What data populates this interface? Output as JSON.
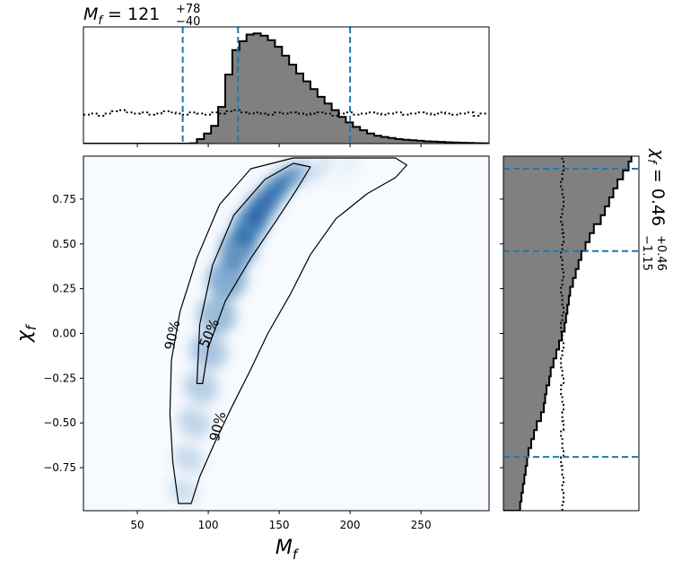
{
  "colors": {
    "accent": "#1f77b4",
    "hist_fill": "#808080",
    "density": "#08519c"
  },
  "chart_data": {
    "type": "corner",
    "top_title": {
      "base": "M",
      "sub": "f",
      "eq": " = 121",
      "sup": "+78",
      "low": "−40"
    },
    "right_title": {
      "base": "χ",
      "sub": "f",
      "eq": " = 0.46",
      "sup": "+0.46",
      "low": "−1.15"
    },
    "main": {
      "xlabel": {
        "base": "M",
        "sub": "f"
      },
      "ylabel": {
        "base": "χ",
        "sub": "f"
      },
      "xlim": [
        12,
        298
      ],
      "ylim": [
        -0.99,
        0.99
      ],
      "xticks": [
        50,
        100,
        150,
        200,
        250
      ],
      "xtick_labels": [
        "50",
        "100",
        "150",
        "200",
        "250"
      ],
      "yticks": [
        -0.75,
        -0.5,
        -0.25,
        0.0,
        0.25,
        0.5,
        0.75
      ],
      "ytick_labels": [
        "−0.75",
        "−0.50",
        "−0.25",
        "0.00",
        "0.25",
        "0.50",
        "0.75"
      ],
      "contour_labels": [
        "90%",
        "50%",
        "90%"
      ],
      "contour_90": [
        [
          79,
          -0.95
        ],
        [
          75,
          -0.72
        ],
        [
          73,
          -0.45
        ],
        [
          74,
          -0.15
        ],
        [
          80,
          0.12
        ],
        [
          92,
          0.42
        ],
        [
          108,
          0.72
        ],
        [
          130,
          0.92
        ],
        [
          160,
          0.98
        ],
        [
          205,
          0.98
        ],
        [
          232,
          0.98
        ],
        [
          240,
          0.94
        ],
        [
          232,
          0.87
        ],
        [
          212,
          0.78
        ],
        [
          190,
          0.64
        ],
        [
          172,
          0.44
        ],
        [
          158,
          0.22
        ],
        [
          142,
          0.0
        ],
        [
          130,
          -0.2
        ],
        [
          116,
          -0.42
        ],
        [
          104,
          -0.62
        ],
        [
          94,
          -0.8
        ],
        [
          88,
          -0.95
        ]
      ],
      "contour_50": [
        [
          92,
          -0.28
        ],
        [
          94,
          0.05
        ],
        [
          103,
          0.38
        ],
        [
          118,
          0.66
        ],
        [
          140,
          0.86
        ],
        [
          160,
          0.95
        ],
        [
          172,
          0.93
        ],
        [
          162,
          0.8
        ],
        [
          148,
          0.63
        ],
        [
          130,
          0.42
        ],
        [
          112,
          0.18
        ],
        [
          100,
          -0.08
        ],
        [
          96,
          -0.28
        ]
      ]
    },
    "mf_hist": {
      "x_start": 12,
      "bin_width": 5,
      "quantile_lines": [
        82,
        121,
        200
      ],
      "posterior": [
        0,
        0,
        0,
        0,
        0,
        0,
        0,
        0,
        0,
        0,
        0,
        0,
        0,
        0,
        0,
        0.003,
        0.04,
        0.09,
        0.16,
        0.33,
        0.62,
        0.84,
        0.92,
        0.98,
        0.99,
        0.97,
        0.93,
        0.87,
        0.79,
        0.71,
        0.63,
        0.56,
        0.49,
        0.42,
        0.36,
        0.3,
        0.24,
        0.19,
        0.15,
        0.12,
        0.09,
        0.07,
        0.06,
        0.05,
        0.04,
        0.035,
        0.03,
        0.025,
        0.02,
        0.018,
        0.015,
        0.012,
        0.01,
        0.008,
        0.006,
        0.004,
        0.003
      ],
      "prior": [
        0.26,
        0.27,
        0.25,
        0.27,
        0.29,
        0.3,
        0.28,
        0.27,
        0.28,
        0.26,
        0.27,
        0.29,
        0.28,
        0.27,
        0.26,
        0.28,
        0.27,
        0.26,
        0.28,
        0.27,
        0.29,
        0.3,
        0.28,
        0.27,
        0.28,
        0.27,
        0.26,
        0.28,
        0.27,
        0.28,
        0.27,
        0.26,
        0.27,
        0.28,
        0.27,
        0.25,
        0.27,
        0.28,
        0.26,
        0.27,
        0.28,
        0.27,
        0.26,
        0.27,
        0.28,
        0.26,
        0.27,
        0.28,
        0.27,
        0.26,
        0.28,
        0.27,
        0.26,
        0.27,
        0.28,
        0.25,
        0.27
      ]
    },
    "chi_hist": {
      "y_start": -0.99,
      "bin_width": 0.05,
      "quantile_lines": [
        -0.69,
        0.46,
        0.92
      ],
      "posterior": [
        0.12,
        0.13,
        0.14,
        0.15,
        0.16,
        0.17,
        0.18,
        0.2,
        0.22,
        0.24,
        0.27,
        0.29,
        0.3,
        0.31,
        0.33,
        0.34,
        0.36,
        0.38,
        0.4,
        0.42,
        0.44,
        0.45,
        0.46,
        0.47,
        0.48,
        0.5,
        0.52,
        0.54,
        0.56,
        0.59,
        0.62,
        0.65,
        0.7,
        0.73,
        0.76,
        0.79,
        0.82,
        0.86,
        0.9,
        0.92
      ],
      "prior": [
        0.46,
        0.47,
        0.46,
        0.47,
        0.46,
        0.45,
        0.47,
        0.46,
        0.45,
        0.47,
        0.46,
        0.47,
        0.46,
        0.45,
        0.47,
        0.46,
        0.45,
        0.46,
        0.47,
        0.46,
        0.45,
        0.46,
        0.47,
        0.46,
        0.45,
        0.46,
        0.47,
        0.46,
        0.45,
        0.46,
        0.47,
        0.46,
        0.45,
        0.46,
        0.47,
        0.46,
        0.45,
        0.46,
        0.47,
        0.46
      ]
    }
  }
}
